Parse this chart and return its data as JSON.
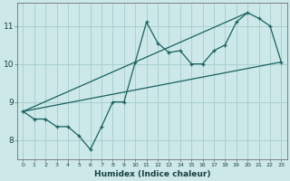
{
  "xlabel": "Humidex (Indice chaleur)",
  "bg_color": "#cce8e8",
  "grid_color": "#aad0d0",
  "line_color": "#1a6060",
  "xlim": [
    -0.5,
    23.5
  ],
  "ylim": [
    7.5,
    11.6
  ],
  "xticks": [
    0,
    1,
    2,
    3,
    4,
    5,
    6,
    7,
    8,
    9,
    10,
    11,
    12,
    13,
    14,
    15,
    16,
    17,
    18,
    19,
    20,
    21,
    22,
    23
  ],
  "yticks": [
    8,
    9,
    10,
    11
  ],
  "series1": [
    [
      0,
      8.75
    ],
    [
      1,
      8.55
    ],
    [
      2,
      8.55
    ],
    [
      3,
      8.35
    ],
    [
      4,
      8.35
    ],
    [
      5,
      8.1
    ],
    [
      6,
      7.75
    ],
    [
      7,
      8.35
    ],
    [
      8,
      9.0
    ],
    [
      9,
      9.0
    ],
    [
      10,
      10.05
    ],
    [
      11,
      11.1
    ],
    [
      12,
      10.55
    ],
    [
      13,
      10.3
    ],
    [
      14,
      10.35
    ],
    [
      15,
      10.0
    ],
    [
      16,
      10.0
    ],
    [
      17,
      10.35
    ],
    [
      18,
      10.5
    ],
    [
      19,
      11.1
    ],
    [
      20,
      11.35
    ],
    [
      21,
      11.2
    ],
    [
      22,
      11.0
    ],
    [
      23,
      10.05
    ]
  ],
  "series2_line": [
    [
      0,
      8.75
    ],
    [
      23,
      10.05
    ]
  ],
  "series3_line": [
    [
      0,
      8.75
    ],
    [
      20,
      11.35
    ]
  ]
}
